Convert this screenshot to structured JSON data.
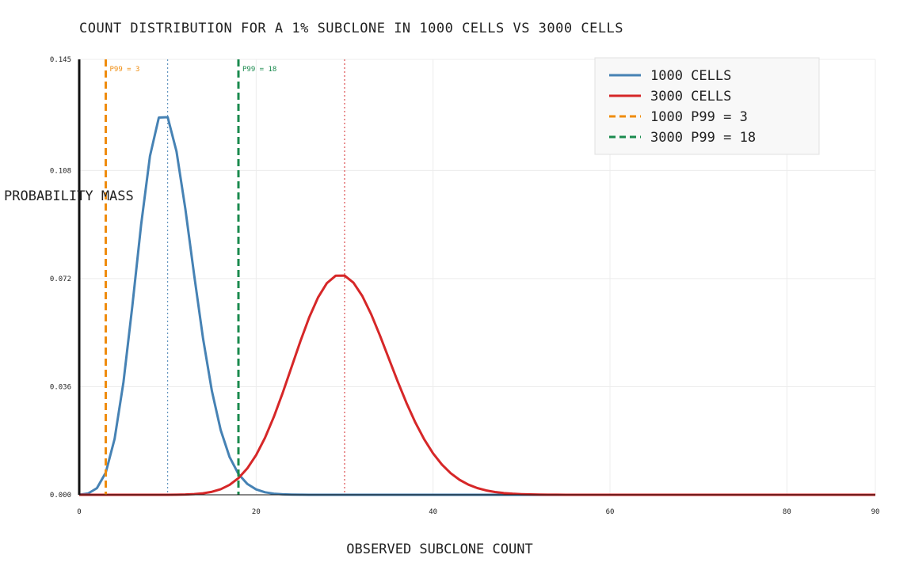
{
  "chart_data": {
    "type": "line",
    "title": "COUNT DISTRIBUTION FOR A 1% SUBCLONE IN 1000 CELLS VS 3000 CELLS",
    "xlabel": "OBSERVED SUBCLONE COUNT",
    "ylabel": "PROBABILITY MASS",
    "xlim": [
      0,
      90
    ],
    "ylim": [
      0,
      0.145
    ],
    "x_ticks": [
      0,
      20,
      40,
      60,
      80,
      90
    ],
    "y_ticks": [
      0.0,
      0.036,
      0.072,
      0.108,
      0.145
    ],
    "y_tick_labels": [
      "0.000",
      "0.036",
      "0.072",
      "0.108",
      "0.145"
    ],
    "grid": true,
    "legend_position": "top-right",
    "series": [
      {
        "name": "1000 CELLS",
        "color": "#4682b4",
        "n": 1000,
        "p": 0.01,
        "x_max": 90
      },
      {
        "name": "3000 CELLS",
        "color": "#d62728",
        "n": 3000,
        "p": 0.01,
        "x_max": 90
      }
    ],
    "mean_lines": [
      {
        "x": 10,
        "color": "#4682b4"
      },
      {
        "x": 30,
        "color": "#d62728"
      }
    ],
    "threshold_lines": [
      {
        "x": 3,
        "color": "#ef8c0e",
        "label": "P99 = 3",
        "legend": "1000  P99 = 3"
      },
      {
        "x": 18,
        "color": "#1a8a4e",
        "label": "P99 = 18",
        "legend": "3000  P99 = 18"
      }
    ]
  }
}
